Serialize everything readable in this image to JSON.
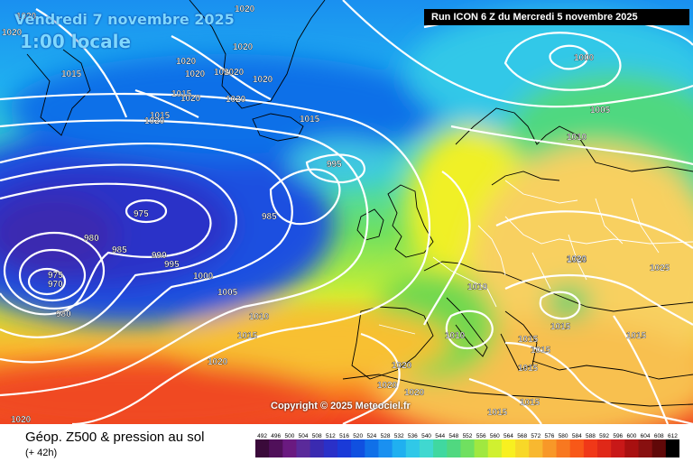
{
  "header": {
    "valid_date": "Vendredi 7 novembre 2025",
    "valid_time": "1:00 locale",
    "run_info": "Run ICON 6 Z du Mercredi 5 novembre 2025"
  },
  "footer": {
    "field_name": "Géop. Z500 & pression au sol",
    "forecast_offset": "(+ 42h)",
    "copyright": "Copyright © 2025 Meteociel.fr"
  },
  "legend": {
    "unit": "dam",
    "ticks": [
      "492",
      "496",
      "500",
      "504",
      "508",
      "512",
      "516",
      "520",
      "524",
      "528",
      "532",
      "536",
      "540",
      "544",
      "548",
      "552",
      "556",
      "560",
      "564",
      "568",
      "572",
      "576",
      "580",
      "584",
      "588",
      "592",
      "596",
      "600",
      "604",
      "608",
      "612"
    ],
    "colors": [
      "#3a0a3a",
      "#50105a",
      "#6a1a80",
      "#5a2a9a",
      "#3a2ab0",
      "#2a30c8",
      "#1a3ad8",
      "#1050e0",
      "#1070e8",
      "#1a90f0",
      "#20b0f0",
      "#30c8e8",
      "#40d8d0",
      "#40d8a0",
      "#50d880",
      "#70e060",
      "#a0e840",
      "#d0f030",
      "#f8f020",
      "#f8d828",
      "#f8b830",
      "#f89828",
      "#f87820",
      "#f85818",
      "#f03818",
      "#e02818",
      "#c81818",
      "#a81010",
      "#881010",
      "#600808",
      "#000000"
    ]
  },
  "map": {
    "isobar_labels": [
      {
        "text": "1020"
      },
      {
        "text": "1020"
      },
      {
        "text": "1020"
      },
      {
        "text": "1015"
      },
      {
        "text": "1020"
      },
      {
        "text": "1020"
      },
      {
        "text": "1020"
      },
      {
        "text": "1020"
      },
      {
        "text": "1015"
      },
      {
        "text": "1020"
      },
      {
        "text": "1020"
      },
      {
        "text": "1020"
      },
      {
        "text": "1020"
      },
      {
        "text": "1015"
      },
      {
        "text": "1020"
      },
      {
        "text": "1015"
      },
      {
        "text": "1000"
      },
      {
        "text": "1005"
      },
      {
        "text": "1010"
      },
      {
        "text": "995"
      },
      {
        "text": "975"
      },
      {
        "text": "985"
      },
      {
        "text": "980"
      },
      {
        "text": "985"
      },
      {
        "text": "990"
      },
      {
        "text": "995"
      },
      {
        "text": "1000"
      },
      {
        "text": "975"
      },
      {
        "text": "970"
      },
      {
        "text": "980"
      },
      {
        "text": "1005"
      },
      {
        "text": "1010"
      },
      {
        "text": "1015"
      },
      {
        "text": "1020"
      },
      {
        "text": "1020"
      },
      {
        "text": "1020"
      },
      {
        "text": "1020"
      },
      {
        "text": "1020"
      },
      {
        "text": "1010"
      },
      {
        "text": "1010"
      },
      {
        "text": "1020"
      },
      {
        "text": "1025"
      },
      {
        "text": "1015"
      },
      {
        "text": "1015"
      },
      {
        "text": "1015"
      },
      {
        "text": "1015"
      },
      {
        "text": "1015"
      },
      {
        "text": "1015"
      },
      {
        "text": "1015"
      },
      {
        "text": "1020"
      }
    ]
  }
}
